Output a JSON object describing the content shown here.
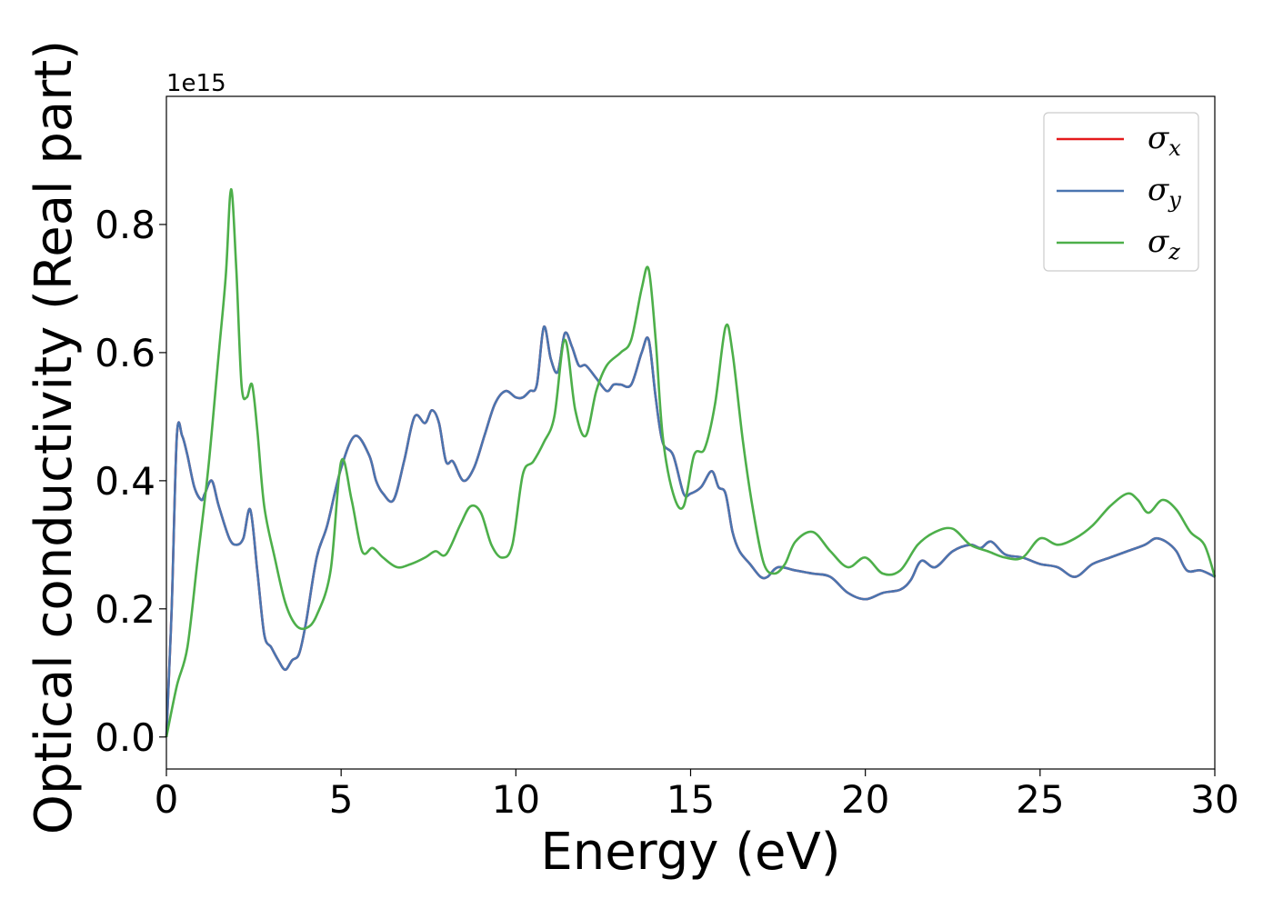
{
  "chart_data": {
    "type": "line",
    "xlabel": "Energy (eV)",
    "ylabel": "Optical conductivity (Real part)",
    "y_offset_label": "1e15",
    "xlim": [
      0,
      30
    ],
    "ylim": [
      -0.05,
      1.0
    ],
    "xticks": [
      0,
      5,
      10,
      15,
      20,
      25,
      30
    ],
    "xtick_labels": [
      "0",
      "5",
      "10",
      "15",
      "20",
      "25",
      "30"
    ],
    "yticks": [
      0.0,
      0.2,
      0.4,
      0.6,
      0.8
    ],
    "ytick_labels": [
      "0.0",
      "0.2",
      "0.4",
      "0.6",
      "0.8"
    ],
    "grid": false,
    "legend_position": "top-right",
    "series": [
      {
        "name": "σ",
        "subscript": "x",
        "color": "#e41a1c",
        "x": [
          0,
          0.15,
          0.3,
          0.45,
          0.6,
          0.8,
          1.0,
          1.1,
          1.3,
          1.5,
          1.8,
          2.0,
          2.2,
          2.4,
          2.6,
          2.8,
          3.0,
          3.2,
          3.4,
          3.6,
          3.8,
          4.0,
          4.3,
          4.6,
          5.0,
          5.4,
          5.8,
          6.0,
          6.2,
          6.5,
          6.8,
          7.1,
          7.4,
          7.6,
          7.8,
          8.0,
          8.2,
          8.5,
          8.8,
          9.1,
          9.4,
          9.7,
          10.0,
          10.2,
          10.4,
          10.6,
          10.8,
          11.0,
          11.2,
          11.4,
          11.6,
          11.8,
          12.0,
          12.3,
          12.6,
          12.8,
          13.0,
          13.3,
          13.6,
          13.8,
          14.0,
          14.2,
          14.5,
          14.8,
          15.0,
          15.3,
          15.6,
          15.8,
          16.0,
          16.2,
          16.4,
          16.7,
          17.0,
          17.2,
          17.5,
          18.0,
          18.5,
          19.0,
          19.5,
          20.0,
          20.5,
          21.0,
          21.3,
          21.6,
          22.0,
          22.5,
          23.0,
          23.3,
          23.6,
          24.0,
          24.5,
          25.0,
          25.5,
          26.0,
          26.5,
          27.0,
          27.5,
          28.0,
          28.3,
          28.6,
          28.9,
          29.2,
          29.6,
          30.0
        ],
        "values": [
          0.0,
          0.2,
          0.47,
          0.47,
          0.44,
          0.39,
          0.37,
          0.38,
          0.4,
          0.36,
          0.31,
          0.3,
          0.31,
          0.355,
          0.26,
          0.16,
          0.14,
          0.12,
          0.105,
          0.12,
          0.13,
          0.18,
          0.28,
          0.33,
          0.42,
          0.47,
          0.44,
          0.4,
          0.38,
          0.37,
          0.43,
          0.5,
          0.49,
          0.51,
          0.49,
          0.43,
          0.43,
          0.4,
          0.42,
          0.47,
          0.52,
          0.54,
          0.53,
          0.53,
          0.54,
          0.55,
          0.64,
          0.59,
          0.57,
          0.63,
          0.61,
          0.58,
          0.58,
          0.56,
          0.54,
          0.55,
          0.55,
          0.55,
          0.6,
          0.62,
          0.53,
          0.46,
          0.44,
          0.38,
          0.38,
          0.39,
          0.415,
          0.39,
          0.38,
          0.32,
          0.29,
          0.27,
          0.25,
          0.25,
          0.265,
          0.26,
          0.255,
          0.25,
          0.225,
          0.215,
          0.225,
          0.23,
          0.245,
          0.275,
          0.265,
          0.29,
          0.3,
          0.295,
          0.305,
          0.285,
          0.28,
          0.27,
          0.265,
          0.25,
          0.27,
          0.28,
          0.29,
          0.3,
          0.31,
          0.305,
          0.29,
          0.26,
          0.26,
          0.25
        ]
      },
      {
        "name": "σ",
        "subscript": "y",
        "color": "#4a75b0",
        "x": [
          0,
          0.15,
          0.3,
          0.45,
          0.6,
          0.8,
          1.0,
          1.1,
          1.3,
          1.5,
          1.8,
          2.0,
          2.2,
          2.4,
          2.6,
          2.8,
          3.0,
          3.2,
          3.4,
          3.6,
          3.8,
          4.0,
          4.3,
          4.6,
          5.0,
          5.4,
          5.8,
          6.0,
          6.2,
          6.5,
          6.8,
          7.1,
          7.4,
          7.6,
          7.8,
          8.0,
          8.2,
          8.5,
          8.8,
          9.1,
          9.4,
          9.7,
          10.0,
          10.2,
          10.4,
          10.6,
          10.8,
          11.0,
          11.2,
          11.4,
          11.6,
          11.8,
          12.0,
          12.3,
          12.6,
          12.8,
          13.0,
          13.3,
          13.6,
          13.8,
          14.0,
          14.2,
          14.5,
          14.8,
          15.0,
          15.3,
          15.6,
          15.8,
          16.0,
          16.2,
          16.4,
          16.7,
          17.0,
          17.2,
          17.5,
          18.0,
          18.5,
          19.0,
          19.5,
          20.0,
          20.5,
          21.0,
          21.3,
          21.6,
          22.0,
          22.5,
          23.0,
          23.3,
          23.6,
          24.0,
          24.5,
          25.0,
          25.5,
          26.0,
          26.5,
          27.0,
          27.5,
          28.0,
          28.3,
          28.6,
          28.9,
          29.2,
          29.6,
          30.0
        ],
        "values": [
          0.0,
          0.2,
          0.47,
          0.47,
          0.44,
          0.39,
          0.37,
          0.38,
          0.4,
          0.36,
          0.31,
          0.3,
          0.31,
          0.355,
          0.26,
          0.16,
          0.14,
          0.12,
          0.105,
          0.12,
          0.13,
          0.18,
          0.28,
          0.33,
          0.42,
          0.47,
          0.44,
          0.4,
          0.38,
          0.37,
          0.43,
          0.5,
          0.49,
          0.51,
          0.49,
          0.43,
          0.43,
          0.4,
          0.42,
          0.47,
          0.52,
          0.54,
          0.53,
          0.53,
          0.54,
          0.55,
          0.64,
          0.59,
          0.57,
          0.63,
          0.61,
          0.58,
          0.58,
          0.56,
          0.54,
          0.55,
          0.55,
          0.55,
          0.6,
          0.62,
          0.53,
          0.46,
          0.44,
          0.38,
          0.38,
          0.39,
          0.415,
          0.39,
          0.38,
          0.32,
          0.29,
          0.27,
          0.25,
          0.25,
          0.265,
          0.26,
          0.255,
          0.25,
          0.225,
          0.215,
          0.225,
          0.23,
          0.245,
          0.275,
          0.265,
          0.29,
          0.3,
          0.295,
          0.305,
          0.285,
          0.28,
          0.27,
          0.265,
          0.25,
          0.27,
          0.28,
          0.29,
          0.3,
          0.31,
          0.305,
          0.29,
          0.26,
          0.26,
          0.25
        ]
      },
      {
        "name": "σ",
        "subscript": "z",
        "color": "#4daf4a",
        "x": [
          0,
          0.3,
          0.6,
          0.9,
          1.2,
          1.5,
          1.7,
          1.85,
          2.0,
          2.15,
          2.3,
          2.45,
          2.6,
          2.8,
          3.1,
          3.4,
          3.7,
          4.0,
          4.3,
          4.7,
          5.0,
          5.3,
          5.6,
          5.9,
          6.2,
          6.6,
          7.0,
          7.4,
          7.7,
          8.0,
          8.4,
          8.7,
          9.0,
          9.3,
          9.6,
          9.9,
          10.2,
          10.5,
          10.8,
          11.1,
          11.4,
          11.7,
          12.0,
          12.3,
          12.6,
          13.0,
          13.3,
          13.6,
          13.8,
          14.0,
          14.2,
          14.5,
          14.8,
          15.1,
          15.4,
          15.7,
          16.0,
          16.2,
          16.5,
          16.8,
          17.1,
          17.4,
          17.7,
          18.0,
          18.5,
          19.0,
          19.5,
          20.0,
          20.5,
          21.0,
          21.5,
          22.0,
          22.5,
          23.0,
          23.5,
          24.0,
          24.5,
          25.0,
          25.5,
          26.0,
          26.5,
          27.0,
          27.5,
          27.8,
          28.1,
          28.5,
          28.9,
          29.3,
          29.7,
          30.0
        ],
        "values": [
          0.0,
          0.08,
          0.14,
          0.28,
          0.42,
          0.6,
          0.72,
          0.855,
          0.73,
          0.55,
          0.53,
          0.55,
          0.48,
          0.36,
          0.28,
          0.21,
          0.175,
          0.17,
          0.19,
          0.26,
          0.43,
          0.37,
          0.29,
          0.295,
          0.28,
          0.265,
          0.27,
          0.28,
          0.29,
          0.285,
          0.33,
          0.36,
          0.35,
          0.3,
          0.28,
          0.3,
          0.41,
          0.43,
          0.46,
          0.5,
          0.62,
          0.51,
          0.47,
          0.54,
          0.58,
          0.6,
          0.62,
          0.7,
          0.73,
          0.62,
          0.47,
          0.38,
          0.36,
          0.44,
          0.45,
          0.52,
          0.64,
          0.6,
          0.46,
          0.35,
          0.27,
          0.255,
          0.27,
          0.305,
          0.32,
          0.29,
          0.265,
          0.28,
          0.255,
          0.26,
          0.3,
          0.32,
          0.325,
          0.3,
          0.29,
          0.28,
          0.28,
          0.31,
          0.3,
          0.31,
          0.33,
          0.36,
          0.38,
          0.37,
          0.35,
          0.37,
          0.355,
          0.32,
          0.3,
          0.25
        ]
      }
    ]
  }
}
